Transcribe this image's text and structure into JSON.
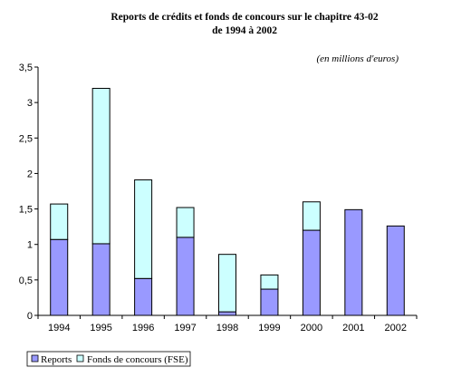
{
  "chart_data": {
    "type": "bar",
    "stacked": true,
    "title_line1": "Reports de crédits et fonds de concours sur le chapitre 43-02",
    "title_line2": "de 1994 à 2002",
    "unit_note": "(en millions d'euros)",
    "categories": [
      "1994",
      "1995",
      "1996",
      "1997",
      "1998",
      "1999",
      "2000",
      "2001",
      "2002"
    ],
    "series": [
      {
        "name": "Reports",
        "color": "#9999ff",
        "values": [
          1.07,
          1.01,
          0.52,
          1.1,
          0.05,
          0.37,
          1.2,
          1.49,
          1.26
        ]
      },
      {
        "name": "Fonds de concours (FSE)",
        "color": "#ccffff",
        "values": [
          0.5,
          2.19,
          1.39,
          0.42,
          0.81,
          0.2,
          0.4,
          0,
          0
        ]
      }
    ],
    "yticks": [
      "0",
      "0,5",
      "1",
      "1,5",
      "2",
      "2,5",
      "3",
      "3,5"
    ],
    "ylim": [
      0,
      3.5
    ],
    "grid": false,
    "legend_position": "bottom-left"
  }
}
